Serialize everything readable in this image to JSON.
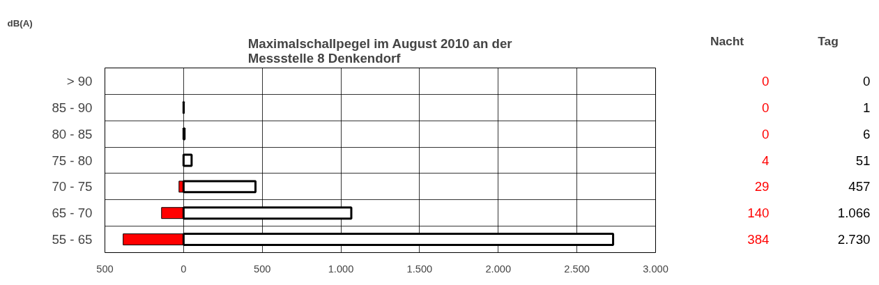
{
  "chart_data": {
    "type": "bar",
    "orientation": "horizontal",
    "title": "Maximalschallpegel im August 2010 an der Messstelle 8 Denkendorf",
    "ylabel": "dB(A)",
    "categories": [
      "> 90",
      "85 - 90",
      "80 - 85",
      "75 - 80",
      "70 - 75",
      "65 - 70",
      "55 - 65"
    ],
    "series": [
      {
        "name": "Nacht",
        "color": "#ff0000",
        "base": [
          null,
          null,
          null,
          -4,
          -29,
          -140,
          -384
        ],
        "values": [
          0,
          0,
          0,
          4,
          29,
          140,
          384
        ],
        "value_labels": [
          "0",
          "0",
          "0",
          "4",
          "29",
          "140",
          "384"
        ]
      },
      {
        "name": "Tag",
        "color": "#ffffff",
        "values": [
          0,
          1,
          6,
          51,
          457,
          1066,
          2730
        ],
        "value_labels": [
          "0",
          "1",
          "6",
          "51",
          "457",
          "1.066",
          "2.730"
        ]
      }
    ],
    "xlim": [
      -500,
      3000
    ],
    "xticks": [
      {
        "value": -500,
        "label": "500"
      },
      0,
      500,
      {
        "value": 1000,
        "label": "1.000"
      },
      {
        "value": 1500,
        "label": "1.500"
      },
      {
        "value": 2000,
        "label": "2.000"
      },
      {
        "value": 2500,
        "label": "2.500"
      },
      {
        "value": 3000,
        "label": "3.000"
      }
    ],
    "grid": true,
    "legend": false
  }
}
